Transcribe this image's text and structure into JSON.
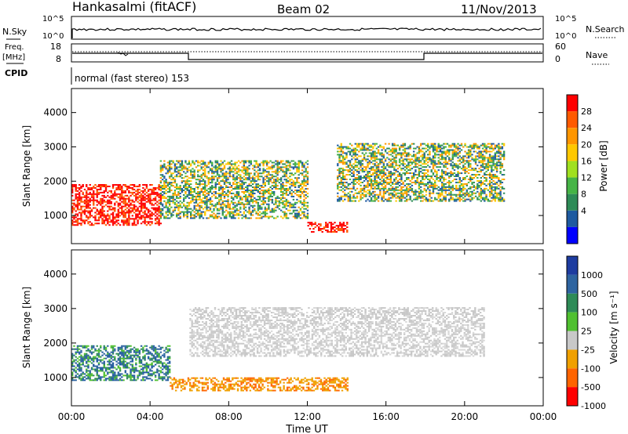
{
  "header": {
    "station": "Hankasalmi (fitACF)",
    "beam": "Beam 02",
    "date": "11/Nov/2013"
  },
  "panels": {
    "nsky": {
      "left_label": "N.Sky",
      "right_label": "N.Search",
      "ticks_left": [
        "10^5",
        "10^0"
      ],
      "ticks_right": [
        "10^5",
        "10^0"
      ]
    },
    "freq": {
      "left_label_1": "Freq.",
      "left_label_2": "[MHz]",
      "right_label": "Nave",
      "ticks_left": [
        "18",
        "8"
      ],
      "ticks_right": [
        "60",
        "0"
      ]
    },
    "cpid": {
      "label": "CPID",
      "mode_text": "normal (fast stereo) 153"
    }
  },
  "x_axis": {
    "label": "Time UT",
    "ticks": [
      "00:00",
      "04:00",
      "08:00",
      "12:00",
      "16:00",
      "20:00",
      "00:00"
    ]
  },
  "chart_data": [
    {
      "type": "heatmap",
      "name": "power",
      "ylabel": "Slant Range [km]",
      "yticks": [
        "1000",
        "2000",
        "3000",
        "4000"
      ],
      "ylim": [
        180,
        4700
      ],
      "colorbar_label": "Power [dB]",
      "colorbar_ticks": [
        "28",
        "24",
        "20",
        "16",
        "12",
        "8",
        "4"
      ],
      "colorbar_colors": [
        "#ff0000",
        "#ff5a00",
        "#ff9600",
        "#ffc800",
        "#a0e020",
        "#46b446",
        "#2e8b57",
        "#1e5aa0",
        "#0000ff"
      ],
      "approx_echo_regions_hours_km": [
        {
          "t0": 0.0,
          "t1": 4.5,
          "r0": 700,
          "r1": 1900,
          "level": "high"
        },
        {
          "t0": 4.5,
          "t1": 12.0,
          "r0": 900,
          "r1": 2600,
          "level": "mid"
        },
        {
          "t0": 12.0,
          "t1": 14.0,
          "r0": 500,
          "r1": 800,
          "level": "high"
        },
        {
          "t0": 13.5,
          "t1": 22.0,
          "r0": 1400,
          "r1": 3100,
          "level": "mid"
        }
      ]
    },
    {
      "type": "heatmap",
      "name": "velocity",
      "ylabel": "Slant Range [km]",
      "yticks": [
        "1000",
        "2000",
        "3000",
        "4000"
      ],
      "ylim": [
        180,
        4700
      ],
      "colorbar_label": "Velocity [m s⁻¹]",
      "colorbar_ticks": [
        "1000",
        "500",
        "100",
        "25",
        "-25",
        "-100",
        "-500",
        "-1000"
      ],
      "colorbar_colors": [
        "#1e3ca0",
        "#2e64a0",
        "#2e8b57",
        "#50c030",
        "#c8c8c8",
        "#f0a000",
        "#ff6400",
        "#ff0000"
      ],
      "approx_echo_regions_hours_km": [
        {
          "t0": 0.0,
          "t1": 5.0,
          "r0": 900,
          "r1": 1900,
          "level": "positive"
        },
        {
          "t0": 5.0,
          "t1": 14.0,
          "r0": 600,
          "r1": 1000,
          "level": "negative"
        },
        {
          "t0": 6.0,
          "t1": 21.0,
          "r0": 1600,
          "r1": 3000,
          "level": "ground_scatter"
        }
      ]
    }
  ]
}
